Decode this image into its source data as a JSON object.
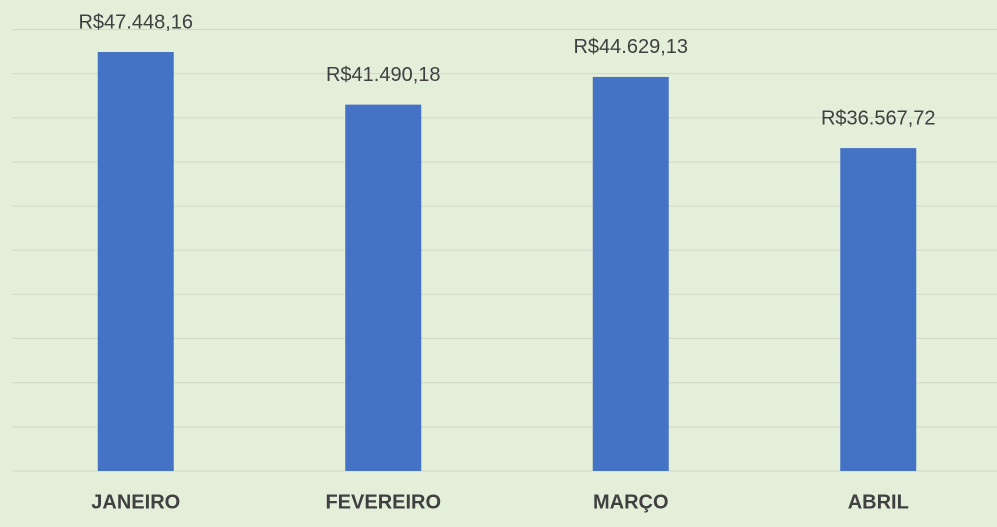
{
  "chart_data": {
    "type": "bar",
    "categories": [
      "JANEIRO",
      "FEVEREIRO",
      "MARÇO",
      "ABRIL"
    ],
    "values": [
      47448.16,
      41490.18,
      44629.13,
      36567.72
    ],
    "value_labels": [
      "R$47.448,16",
      "R$41.490,18",
      "R$44.629,13",
      "R$36.567,72"
    ],
    "color": "#4472c4",
    "ylim": [
      0,
      50000
    ],
    "yticks": [
      0,
      5000,
      10000,
      15000,
      20000,
      25000,
      30000,
      35000,
      40000,
      45000,
      50000
    ],
    "grid": true
  }
}
